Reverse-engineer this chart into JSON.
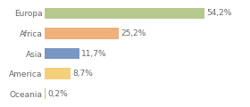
{
  "categories": [
    "Europa",
    "Africa",
    "Asia",
    "America",
    "Oceania"
  ],
  "values": [
    54.2,
    25.2,
    11.7,
    8.7,
    0.2
  ],
  "labels": [
    "54,2%",
    "25,2%",
    "11,7%",
    "8,7%",
    "0,2%"
  ],
  "bar_colors": [
    "#b5c98e",
    "#f0b07a",
    "#7a96c2",
    "#f5d07a",
    "#b5c98e"
  ],
  "background_color": "#ffffff",
  "xlim": [
    0,
    68
  ],
  "bar_height": 0.55,
  "label_fontsize": 6.5,
  "tick_fontsize": 6.5,
  "grid_color": "#dddddd",
  "text_color": "#666666"
}
